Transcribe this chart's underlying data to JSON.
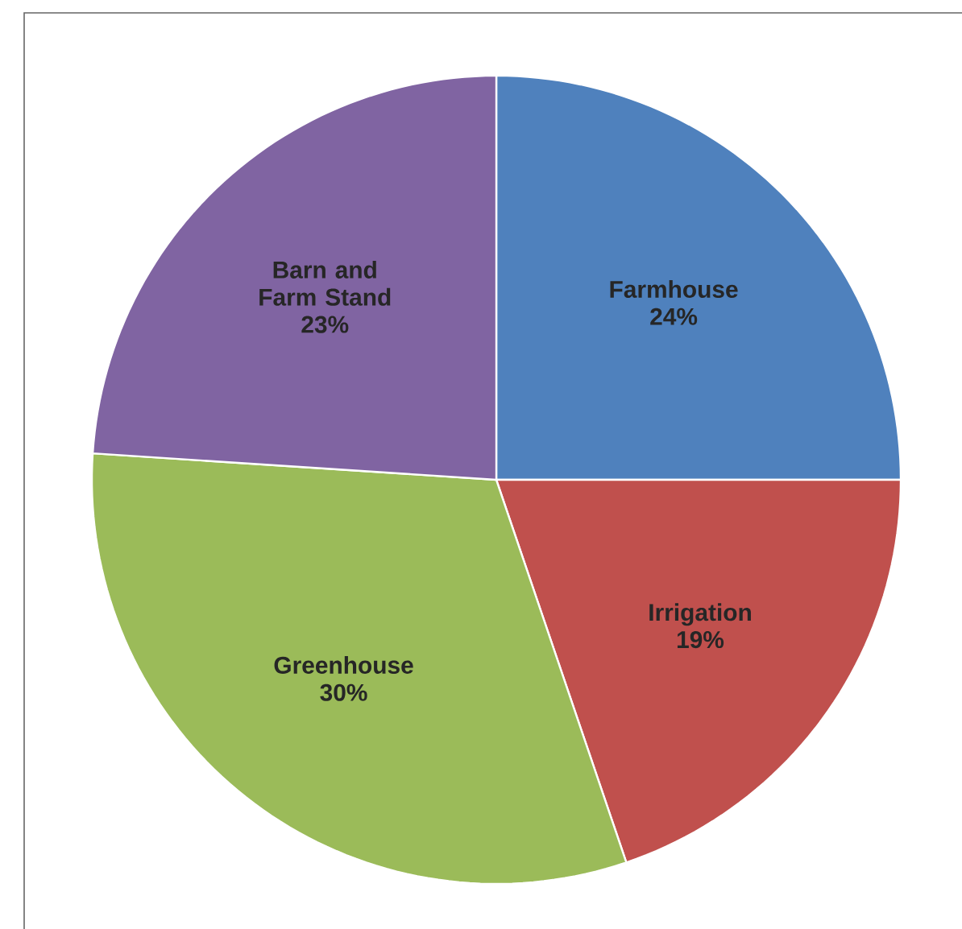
{
  "chart_data": {
    "type": "pie",
    "categories": [
      "Farmhouse",
      "Irrigation",
      "Greenhouse",
      "Barn and Farm Stand"
    ],
    "values": [
      24,
      19,
      30,
      23
    ],
    "value_labels": [
      "24%",
      "19%",
      "30%",
      "23%"
    ],
    "colors": [
      "#4f81bd",
      "#c0504d",
      "#9bbb59",
      "#8064a2"
    ]
  }
}
